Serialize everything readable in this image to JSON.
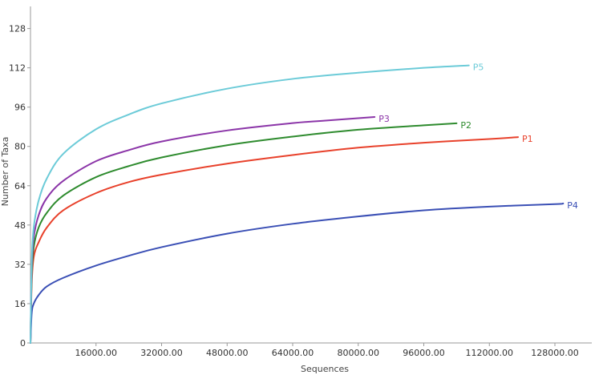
{
  "chart_data": {
    "type": "line",
    "title": "",
    "xlabel": "Sequences",
    "ylabel": "Number of Taxa",
    "xlim": [
      0,
      137000
    ],
    "ylim": [
      0,
      137
    ],
    "xticks": [
      16000,
      32000,
      48000,
      64000,
      80000,
      96000,
      112000,
      128000
    ],
    "xtick_labels": [
      "16000.00",
      "32000.00",
      "48000.00",
      "64000.00",
      "80000.00",
      "96000.00",
      "112000.00",
      "128000.00"
    ],
    "yticks": [
      0,
      16,
      32,
      48,
      64,
      80,
      96,
      112,
      128
    ],
    "ytick_labels": [
      "0",
      "16",
      "32",
      "48",
      "64",
      "80",
      "96",
      "112",
      "128"
    ],
    "grid": false,
    "legend": "none",
    "series": [
      {
        "name": "P1",
        "color": "#e8412b",
        "x": [
          0,
          300,
          800,
          2000,
          4000,
          8000,
          16000,
          24000,
          32000,
          48000,
          64000,
          80000,
          96000,
          112000,
          119000
        ],
        "y": [
          0,
          24,
          35,
          41,
          47,
          54,
          61,
          65.5,
          68.5,
          73,
          76.5,
          79.5,
          81.5,
          83,
          83.8
        ]
      },
      {
        "name": "P2",
        "color": "#2e8b2e",
        "x": [
          0,
          300,
          800,
          2000,
          4000,
          8000,
          16000,
          24000,
          32000,
          48000,
          64000,
          80000,
          96000,
          104000
        ],
        "y": [
          0,
          27,
          39,
          47,
          53,
          60,
          67.5,
          72,
          75.5,
          80.5,
          84,
          86.8,
          88.6,
          89.4
        ]
      },
      {
        "name": "P3",
        "color": "#8b35a8",
        "x": [
          0,
          300,
          800,
          2000,
          4000,
          8000,
          16000,
          24000,
          32000,
          48000,
          64000,
          72000,
          84000
        ],
        "y": [
          0,
          30,
          43,
          52,
          59,
          66,
          74,
          78.5,
          82,
          86.5,
          89.5,
          90.5,
          92
        ]
      },
      {
        "name": "P4",
        "color": "#3a4fb5",
        "x": [
          0,
          300,
          800,
          2000,
          4000,
          8000,
          16000,
          24000,
          32000,
          48000,
          64000,
          80000,
          96000,
          112000,
          128000,
          130000
        ],
        "y": [
          0,
          12,
          16,
          19.5,
          23,
          26.5,
          31.5,
          35.5,
          39,
          44.5,
          48.5,
          51.5,
          54,
          55.5,
          56.5,
          56.8
        ]
      },
      {
        "name": "P5",
        "color": "#6ccbd8",
        "x": [
          0,
          300,
          800,
          2000,
          4000,
          8000,
          16000,
          24000,
          32000,
          48000,
          64000,
          80000,
          96000,
          107000
        ],
        "y": [
          0,
          33,
          47,
          58,
          67,
          77,
          87,
          93,
          97.5,
          103.5,
          107.5,
          110,
          112,
          113
        ]
      }
    ]
  }
}
